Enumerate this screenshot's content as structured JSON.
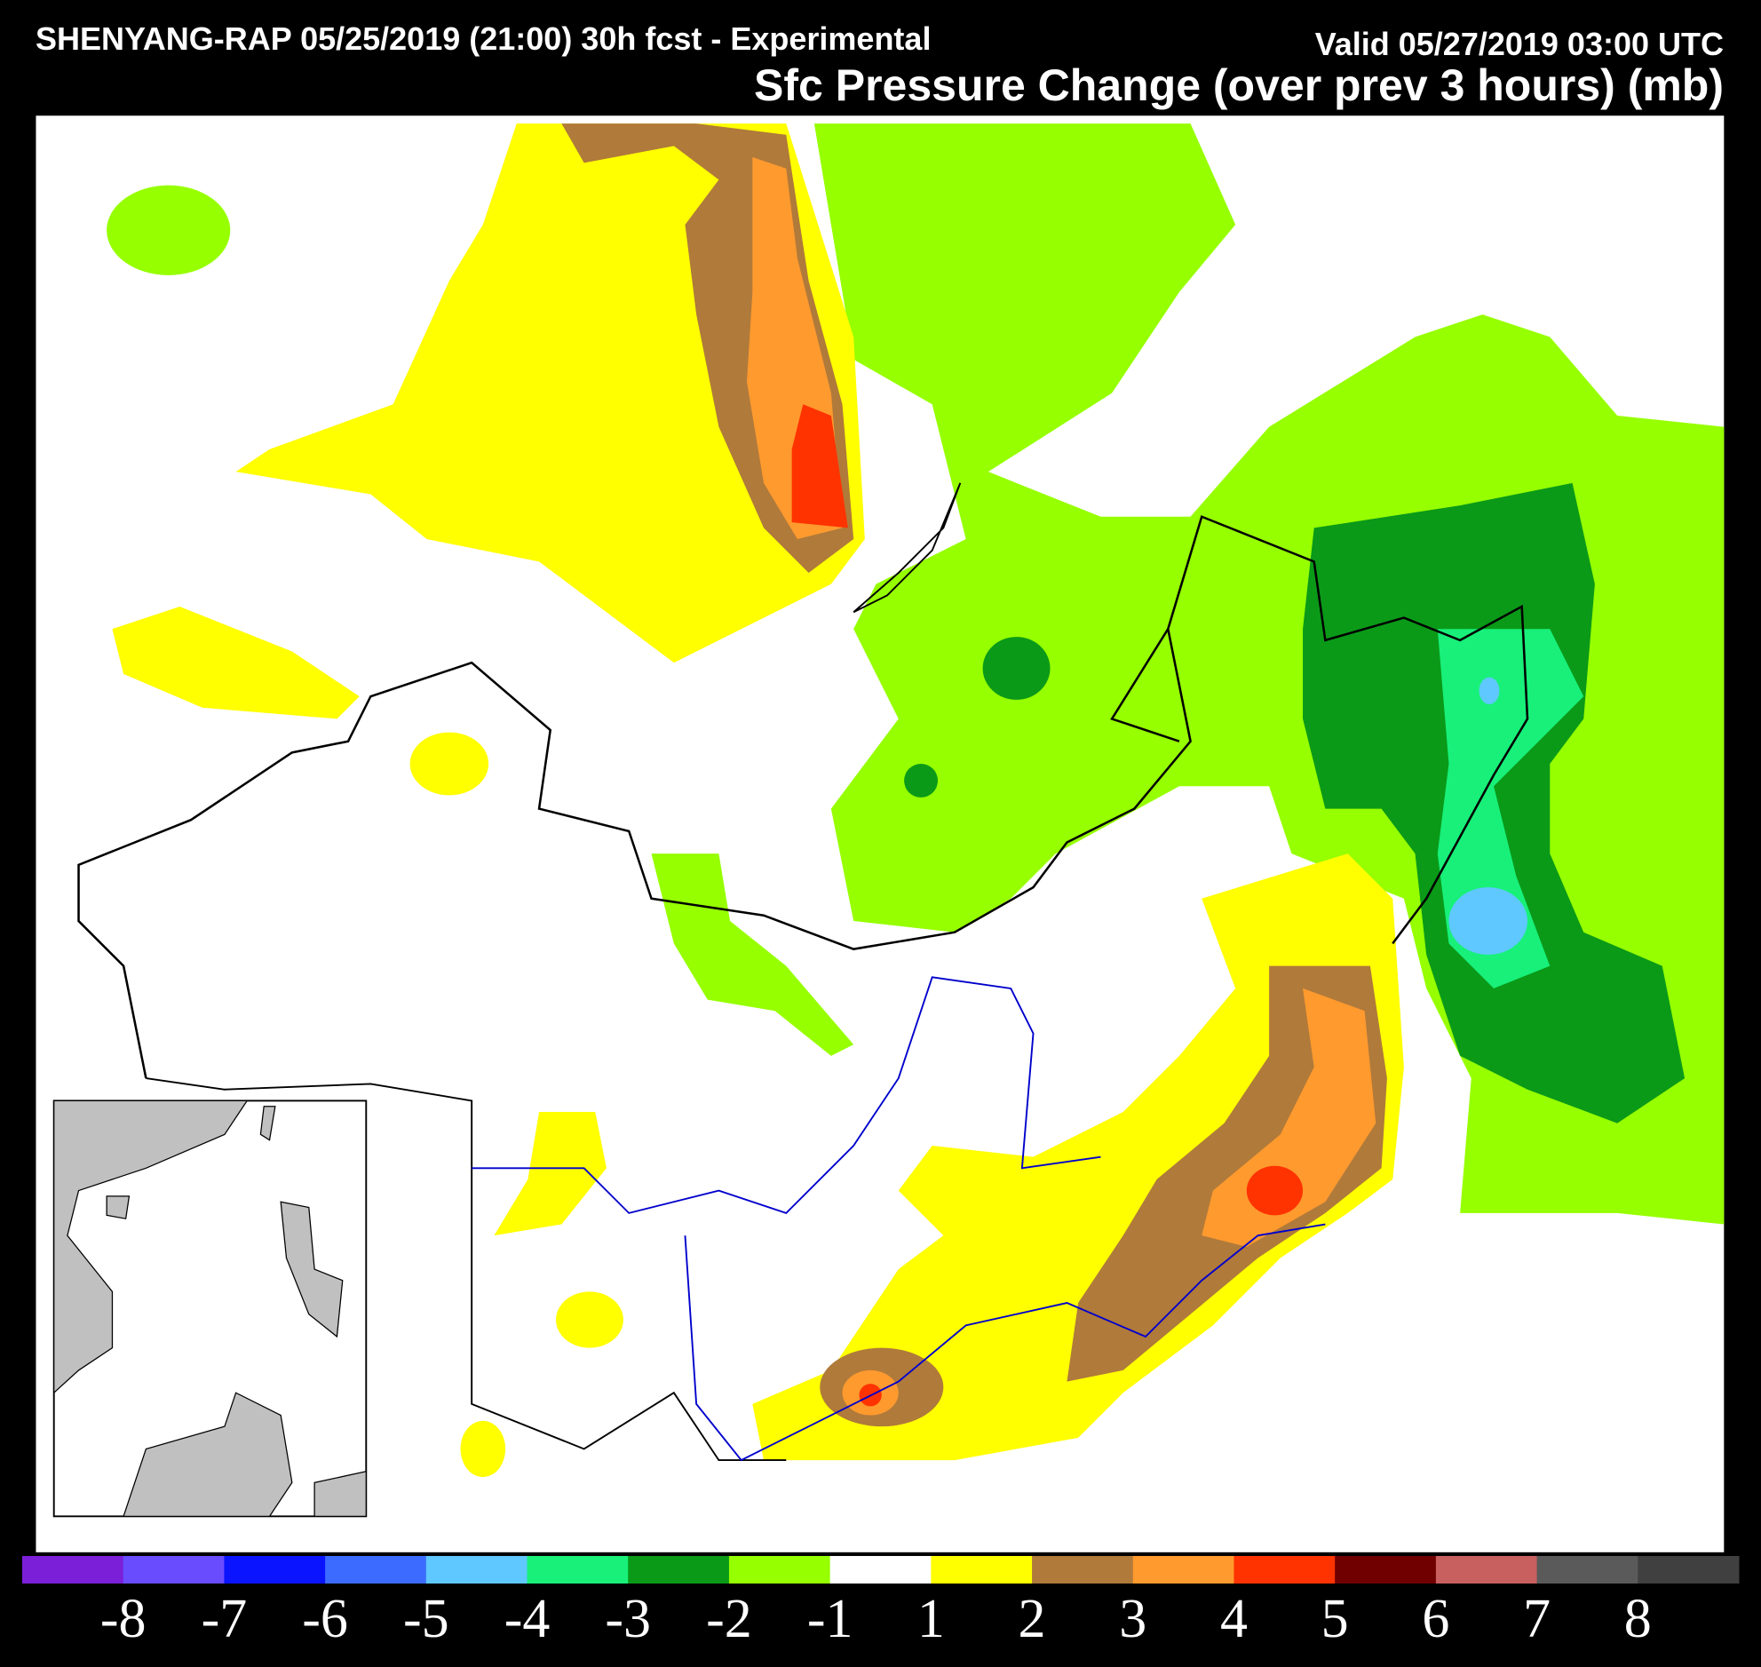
{
  "header": {
    "title": "SHENYANG-RAP 05/25/2019 (21:00) 30h fcst - Experimental",
    "valid": "Valid 05/27/2019 03:00 UTC",
    "field": "Sfc Pressure Change (over prev 3 hours) (mb)"
  },
  "colorbar": {
    "colors": [
      "#7b1fd8",
      "#6a4cff",
      "#0a14ff",
      "#3c6cff",
      "#5fc8ff",
      "#18f07a",
      "#0a9a18",
      "#96ff00",
      "#ffffff",
      "#ffff00",
      "#b07a3a",
      "#ff9a2e",
      "#ff3300",
      "#700000",
      "#c86060",
      "#5a5a5a",
      "#404040"
    ],
    "ticks": [
      -8,
      -7,
      -6,
      -5,
      -4,
      -3,
      -2,
      -1,
      1,
      2,
      3,
      4,
      5,
      6,
      7,
      8
    ]
  }
}
